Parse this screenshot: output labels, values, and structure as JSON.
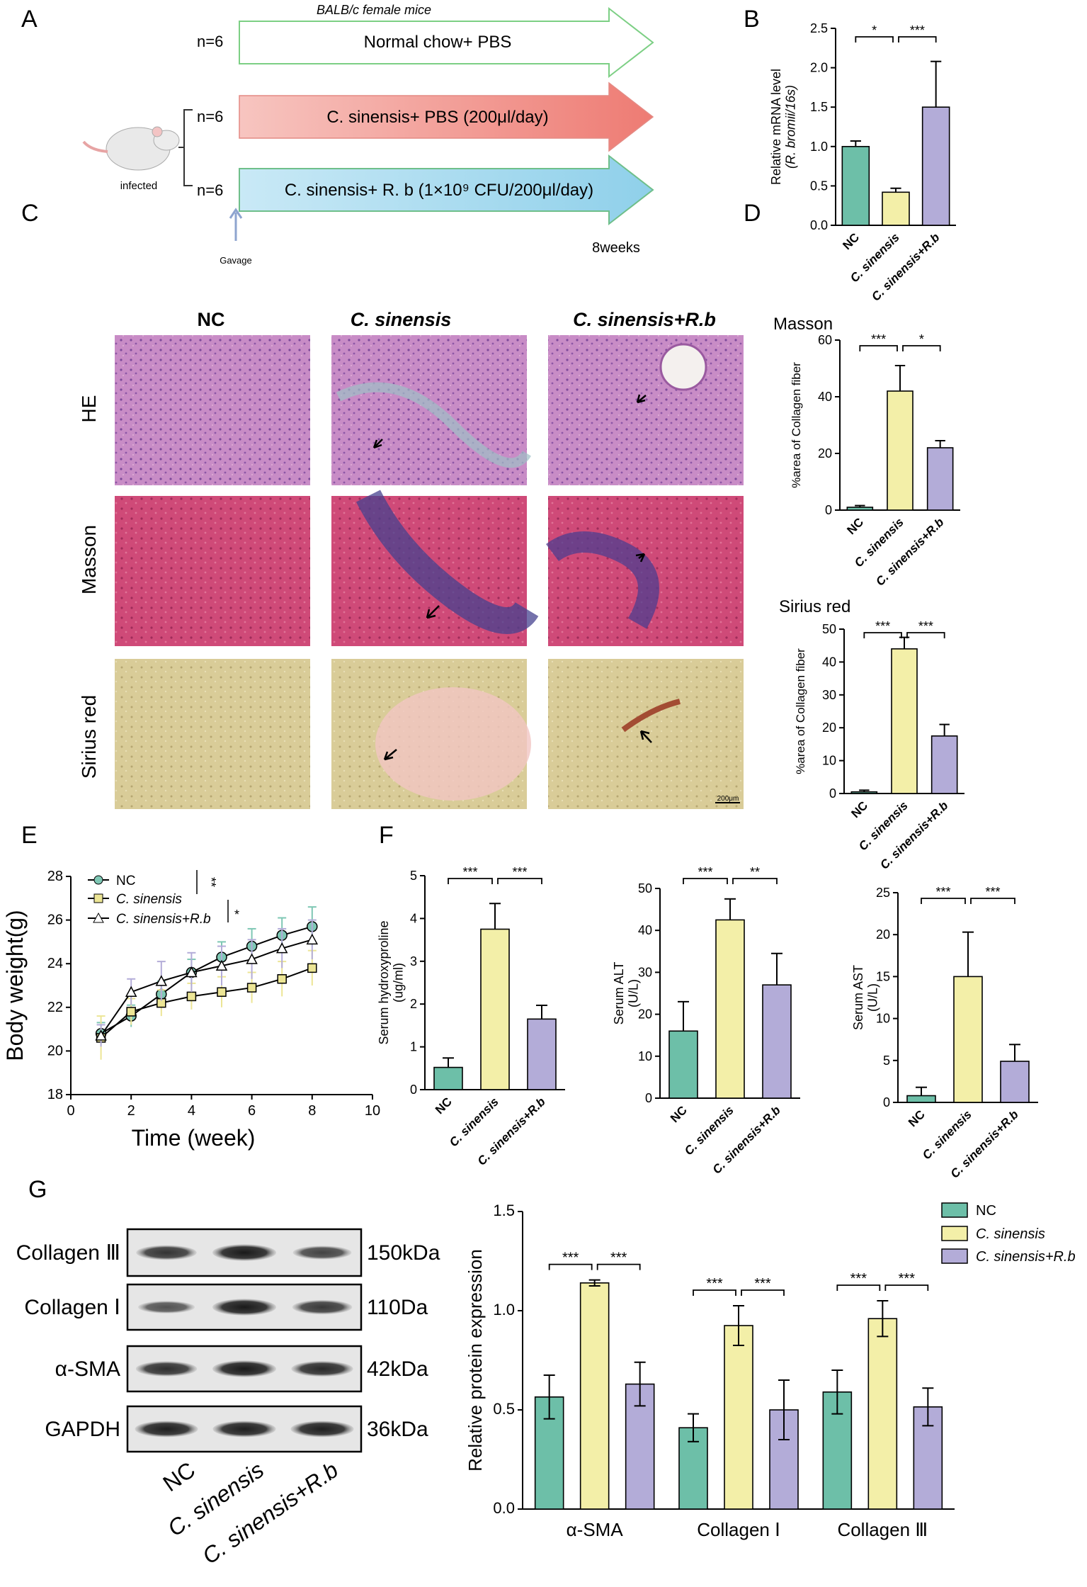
{
  "colors": {
    "nc": "#6dbfa8",
    "cs": "#f3efa8",
    "crb": "#b3acd8",
    "nc_line": "#7ec7b4",
    "cs_line": "#ece595",
    "crb_line": "#b3acd8"
  },
  "panels": {
    "A": "A",
    "B": "B",
    "C": "C",
    "D": "D",
    "E": "E",
    "F": "F",
    "G": "G"
  },
  "panelA": {
    "header": "BALB/c female mice",
    "rows": [
      {
        "n": "n=6",
        "label": "Normal chow+ PBS"
      },
      {
        "n": "n=6",
        "label": "C. sinensis+ PBS (200μl/day)"
      },
      {
        "n": "n=6",
        "label": "C. sinensis+ R. b (1×10⁹ CFU/200μl/day)"
      }
    ],
    "infected": "infected",
    "gavage": "Gavage",
    "duration": "8weeks"
  },
  "panelC": {
    "cols": [
      "NC",
      "C. sinensis",
      "C. sinensis+R.b"
    ],
    "rows": [
      "HE",
      "Masson",
      "Sirius red"
    ],
    "scale": "200μm"
  },
  "chart_data": [
    {
      "id": "B",
      "type": "bar",
      "categories": [
        "NC",
        "C. sinensis",
        "C. sinensis+R.b"
      ],
      "values": [
        1.0,
        0.42,
        1.5
      ],
      "errors": [
        0.07,
        0.05,
        0.58
      ],
      "ylabel": "Relative mRNA level (R. bromii/16s)",
      "ylim": [
        0,
        2.5
      ],
      "yticks": [
        "0.0",
        "0.5",
        "1.0",
        "1.5",
        "2.0",
        "2.5"
      ],
      "sig": [
        "*",
        "***"
      ]
    },
    {
      "id": "D1",
      "type": "bar",
      "title": "Masson",
      "categories": [
        "NC",
        "C. sinensis",
        "C. sinensis+R.b"
      ],
      "values": [
        1,
        42,
        22
      ],
      "errors": [
        0.6,
        9,
        2.5
      ],
      "ylabel": "%area of Collagen fiber",
      "ylim": [
        0,
        60
      ],
      "yticks": [
        "0",
        "20",
        "40",
        "60"
      ],
      "sig": [
        "***",
        "*"
      ]
    },
    {
      "id": "D2",
      "type": "bar",
      "title": "Sirius red",
      "categories": [
        "NC",
        "C. sinensis",
        "C. sinensis+R.b"
      ],
      "values": [
        0.5,
        44,
        17.5
      ],
      "errors": [
        0.5,
        3.5,
        3.5
      ],
      "ylabel": "%area of Collagen fiber",
      "ylim": [
        0,
        50
      ],
      "yticks": [
        "0",
        "10",
        "20",
        "30",
        "40",
        "50"
      ],
      "sig": [
        "***",
        "***"
      ]
    },
    {
      "id": "E",
      "type": "line",
      "xlabel": "Time (week)",
      "ylabel": "Body weight(g)",
      "xlim": [
        0,
        10
      ],
      "ylim": [
        18,
        28
      ],
      "xticks": [
        "0",
        "2",
        "4",
        "6",
        "8",
        "10"
      ],
      "yticks": [
        "18",
        "20",
        "22",
        "24",
        "26",
        "28"
      ],
      "x": [
        1,
        2,
        3,
        4,
        5,
        6,
        7,
        8
      ],
      "series": [
        {
          "name": "NC",
          "values": [
            20.8,
            21.6,
            22.6,
            23.6,
            24.3,
            24.8,
            25.3,
            25.7
          ],
          "errors": [
            0.5,
            0.5,
            0.6,
            0.6,
            0.7,
            0.8,
            0.8,
            0.9
          ]
        },
        {
          "name": "C. sinensis",
          "values": [
            20.6,
            21.8,
            22.2,
            22.5,
            22.7,
            22.9,
            23.3,
            23.8
          ],
          "errors": [
            1.0,
            0.6,
            0.6,
            0.6,
            0.7,
            0.7,
            0.8,
            0.8
          ]
        },
        {
          "name": "C. sinensis+R.b",
          "values": [
            20.7,
            22.7,
            23.2,
            23.6,
            23.9,
            24.2,
            24.7,
            25.1
          ],
          "errors": [
            0.5,
            0.6,
            0.9,
            0.9,
            0.9,
            0.9,
            0.9,
            0.9
          ]
        }
      ],
      "sig": [
        "**",
        "*"
      ]
    },
    {
      "id": "F1",
      "type": "bar",
      "categories": [
        "NC",
        "C. sinensis",
        "C. sinensis+R.b"
      ],
      "values": [
        0.52,
        3.75,
        1.65
      ],
      "errors": [
        0.22,
        0.6,
        0.32
      ],
      "ylabel": "Serum hydroxyproline (ug/ml)",
      "ylim": [
        0,
        5
      ],
      "yticks": [
        "0",
        "1",
        "2",
        "3",
        "4",
        "5"
      ],
      "sig": [
        "***",
        "***"
      ]
    },
    {
      "id": "F2",
      "type": "bar",
      "categories": [
        "NC",
        "C. sinensis",
        "C. sinensis+R.b"
      ],
      "values": [
        16,
        42.5,
        27
      ],
      "errors": [
        7,
        5,
        7.5
      ],
      "ylabel": "Serum ALT (U/L)",
      "ylim": [
        0,
        50
      ],
      "yticks": [
        "0",
        "10",
        "20",
        "30",
        "40",
        "50"
      ],
      "sig": [
        "***",
        "**"
      ]
    },
    {
      "id": "F3",
      "type": "bar",
      "categories": [
        "NC",
        "C. sinensis",
        "C. sinensis+R.b"
      ],
      "values": [
        0.8,
        15,
        4.9
      ],
      "errors": [
        1.0,
        5.3,
        2.0
      ],
      "ylabel": "Serum AST (U/L)",
      "ylim": [
        0,
        25
      ],
      "yticks": [
        "0",
        "5",
        "10",
        "15",
        "20",
        "25"
      ],
      "sig": [
        "***",
        "***"
      ]
    },
    {
      "id": "G",
      "type": "bar",
      "categories": [
        "α-SMA",
        "Collagen Ⅰ",
        "Collagen Ⅲ"
      ],
      "ylabel": "Relative protein expression",
      "ylim": [
        0,
        1.5
      ],
      "yticks": [
        "0.0",
        "0.5",
        "1.0",
        "1.5"
      ],
      "series": [
        {
          "name": "NC",
          "values": [
            0.565,
            0.41,
            0.59
          ],
          "errors": [
            0.11,
            0.07,
            0.11
          ]
        },
        {
          "name": "C. sinensis",
          "values": [
            1.14,
            0.925,
            0.96
          ],
          "errors": [
            0.015,
            0.1,
            0.09
          ]
        },
        {
          "name": "C. sinensis+R.b",
          "values": [
            0.63,
            0.5,
            0.515
          ],
          "errors": [
            0.11,
            0.15,
            0.095
          ]
        }
      ],
      "sig": [
        "***",
        "***"
      ]
    }
  ],
  "blot": {
    "proteins": [
      "Collagen Ⅲ",
      "Collagen Ⅰ",
      "α-SMA",
      "GAPDH"
    ],
    "sizes": [
      "150kDa",
      "110Da",
      "42kDa",
      "36kDa"
    ],
    "lanes": [
      "NC",
      "C. sinensis",
      "C. sinensis+R.b"
    ]
  }
}
